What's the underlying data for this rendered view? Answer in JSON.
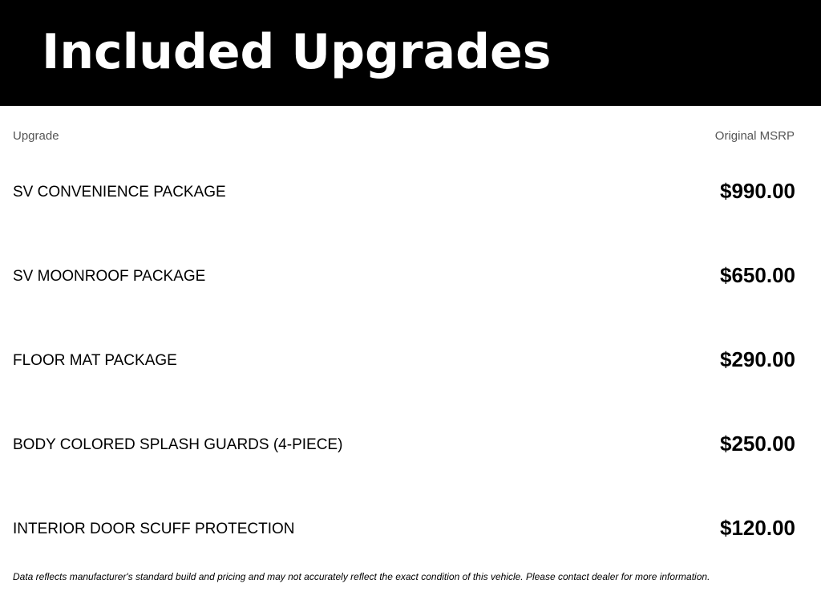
{
  "header": {
    "title": "Included Upgrades"
  },
  "columns": {
    "upgrade": "Upgrade",
    "msrp": "Original MSRP"
  },
  "rows": [
    {
      "name": "SV CONVENIENCE PACKAGE",
      "price": "$990.00"
    },
    {
      "name": "SV MOONROOF PACKAGE",
      "price": "$650.00"
    },
    {
      "name": "FLOOR MAT PACKAGE",
      "price": "$290.00"
    },
    {
      "name": "BODY COLORED SPLASH GUARDS (4-PIECE)",
      "price": "$250.00"
    },
    {
      "name": "INTERIOR DOOR SCUFF PROTECTION",
      "price": "$120.00"
    }
  ],
  "footer": "Data reflects manufacturer's standard build and pricing and may not accurately reflect the exact condition of this vehicle. Please contact dealer for more information."
}
